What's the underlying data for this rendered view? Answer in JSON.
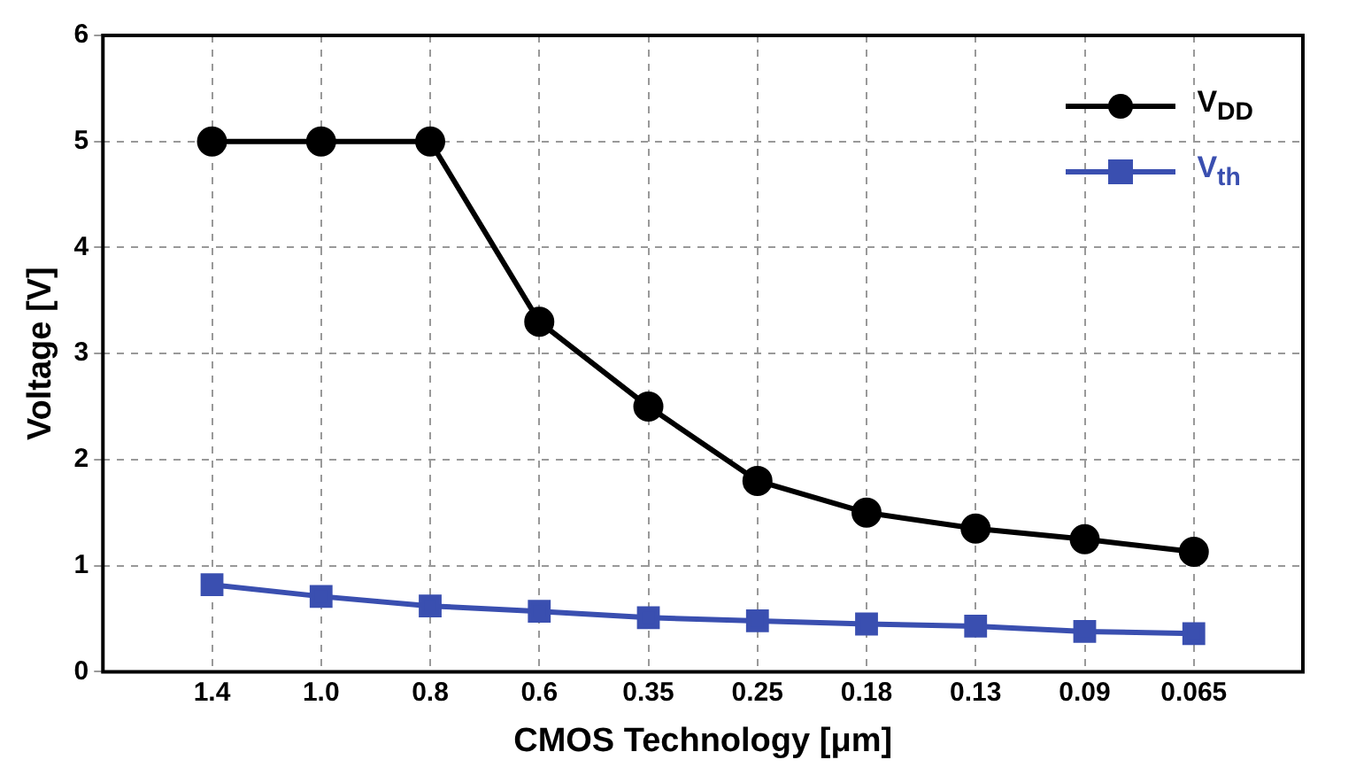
{
  "chart_data": {
    "type": "line",
    "xlabel": "CMOS Technology [μm]",
    "ylabel": "Voltage [V]",
    "categories": [
      "1.4",
      "1.0",
      "0.8",
      "0.6",
      "0.35",
      "0.25",
      "0.18",
      "0.13",
      "0.09",
      "0.065"
    ],
    "series": [
      {
        "name": "V$_{DD}$",
        "color": "#000000",
        "marker": "circle",
        "values": [
          5,
          5,
          5,
          3.3,
          2.5,
          1.8,
          1.5,
          1.35,
          1.25,
          1.13
        ]
      },
      {
        "name": "V$_{th}$",
        "color": "#3a4fb0",
        "marker": "square",
        "values": [
          0.82,
          0.71,
          0.62,
          0.57,
          0.51,
          0.48,
          0.45,
          0.43,
          0.38,
          0.36
        ]
      }
    ],
    "ylim": [
      0,
      6
    ],
    "yticks": [
      0,
      1,
      2,
      3,
      4,
      5,
      6
    ],
    "grid": true,
    "line_style": "solid",
    "legend": "top right"
  }
}
